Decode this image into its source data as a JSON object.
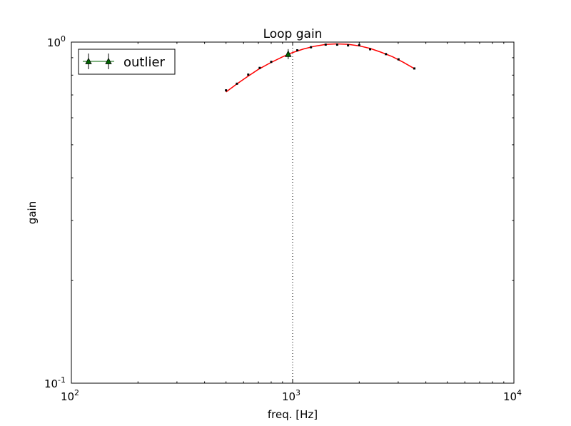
{
  "chart_data": {
    "type": "line",
    "title": "Loop gain",
    "xlabel": "freq. [Hz]",
    "ylabel": "gain",
    "xscale": "log",
    "yscale": "log",
    "xlim": [
      100,
      10000
    ],
    "ylim": [
      0.1,
      1.0
    ],
    "x_ticks": [
      {
        "value": 100,
        "base": "10",
        "exp": "2"
      },
      {
        "value": 1000,
        "base": "10",
        "exp": "3"
      },
      {
        "value": 10000,
        "base": "10",
        "exp": "4"
      }
    ],
    "y_ticks": [
      {
        "value": 0.1,
        "base": "10",
        "exp": "-1"
      },
      {
        "value": 1.0,
        "base": "10",
        "exp": "0"
      }
    ],
    "vline_x": 1000,
    "legend": {
      "position": "upper-left",
      "entries": [
        {
          "label": "outlier"
        }
      ]
    },
    "series": [
      {
        "kind": "fit-line",
        "color": "#ff0000",
        "x": [
          500,
          560,
          630,
          700,
          800,
          900,
          1000,
          1120,
          1260,
          1410,
          1580,
          1780,
          2000,
          2240,
          2500,
          2820,
          3160,
          3550
        ],
        "y": [
          0.714,
          0.754,
          0.795,
          0.832,
          0.872,
          0.905,
          0.932,
          0.955,
          0.973,
          0.984,
          0.988,
          0.985,
          0.975,
          0.958,
          0.935,
          0.907,
          0.873,
          0.836
        ]
      },
      {
        "kind": "data-points",
        "color": "#000000",
        "x": [
          500,
          560,
          630,
          710,
          800,
          1050,
          1210,
          1410,
          1590,
          1780,
          2000,
          2240,
          2640,
          3010,
          3550
        ],
        "y": [
          0.722,
          0.755,
          0.803,
          0.84,
          0.875,
          0.946,
          0.966,
          0.983,
          0.983,
          0.978,
          0.98,
          0.953,
          0.922,
          0.89,
          0.837
        ]
      },
      {
        "kind": "outlier",
        "name": "outlier",
        "color": "#006400",
        "x": [
          955
        ],
        "y": [
          0.922
        ]
      }
    ]
  }
}
